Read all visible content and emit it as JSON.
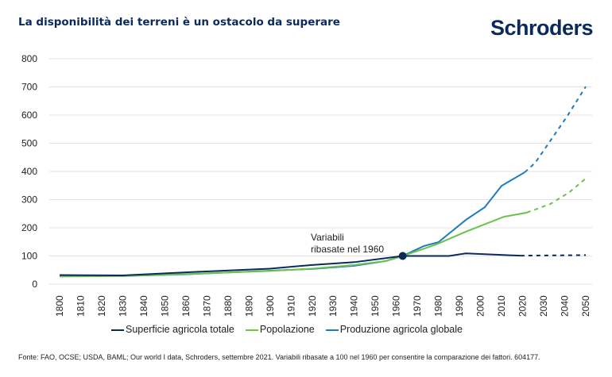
{
  "title": "La disponibilità dei terreni è un ostacolo da superare",
  "logo": "Schroders",
  "source": "Fonte: FAO, OCSE; USDA, BAML; Our world I data, Schroders, settembre 2021. Variabili ribasate a 100 nel 1960 per consentire la comparazione dei fattori. 604177.",
  "chart_data": {
    "type": "line",
    "title": "La disponibilità dei terreni è un ostacolo da superare",
    "xlim": [
      1800,
      2050
    ],
    "ylim": [
      0,
      800
    ],
    "yticks": [
      0,
      100,
      200,
      300,
      400,
      500,
      600,
      700,
      800
    ],
    "xticks": [
      1800,
      1810,
      1820,
      1830,
      1840,
      1850,
      1860,
      1870,
      1880,
      1890,
      1900,
      1910,
      1920,
      1930,
      1940,
      1950,
      1960,
      1970,
      1980,
      1990,
      2000,
      2010,
      2020,
      2030,
      2040,
      2050
    ],
    "grid": "horizontal",
    "legend": "bottom",
    "annotation": {
      "text_line1": "Variabili",
      "text_line2": "ribasate nel 1960",
      "x": 1963,
      "y": 100
    },
    "series": [
      {
        "name": "Superficie agricola totale",
        "color": "#0b2a5c",
        "x": [
          1800,
          1830,
          1860,
          1900,
          1920,
          1940,
          1963,
          1985,
          1993,
          2019
        ],
        "y": [
          32,
          31,
          42,
          55,
          68,
          78,
          100,
          100,
          109,
          101
        ],
        "projection": {
          "x": [
            2019,
            2050
          ],
          "y": [
            101,
            103
          ]
        }
      },
      {
        "name": "Popolazione",
        "color": "#6cc24a",
        "x": [
          1800,
          1830,
          1860,
          1900,
          1920,
          1940,
          1955,
          1963,
          1979,
          1993,
          2011,
          2022
        ],
        "y": [
          27,
          29,
          36,
          47,
          55,
          68,
          82,
          100,
          141,
          186,
          239,
          254
        ],
        "projection": {
          "x": [
            2022,
            2033,
            2042,
            2050
          ],
          "y": [
            254,
            284,
            325,
            375
          ]
        }
      },
      {
        "name": "Produzione agricola globale",
        "color": "#1a7cc1",
        "x": [
          1800,
          1830,
          1860,
          1900,
          1920,
          1940,
          1955,
          1963,
          1973,
          1980,
          1993,
          2002,
          2010,
          2021
        ],
        "y": [
          32,
          29,
          35,
          48,
          54,
          65,
          82,
          100,
          135,
          149,
          228,
          273,
          349,
          397
        ],
        "projection": {
          "x": [
            2021,
            2026,
            2041,
            2050
          ],
          "y": [
            397,
            431,
            594,
            701
          ]
        }
      }
    ]
  }
}
